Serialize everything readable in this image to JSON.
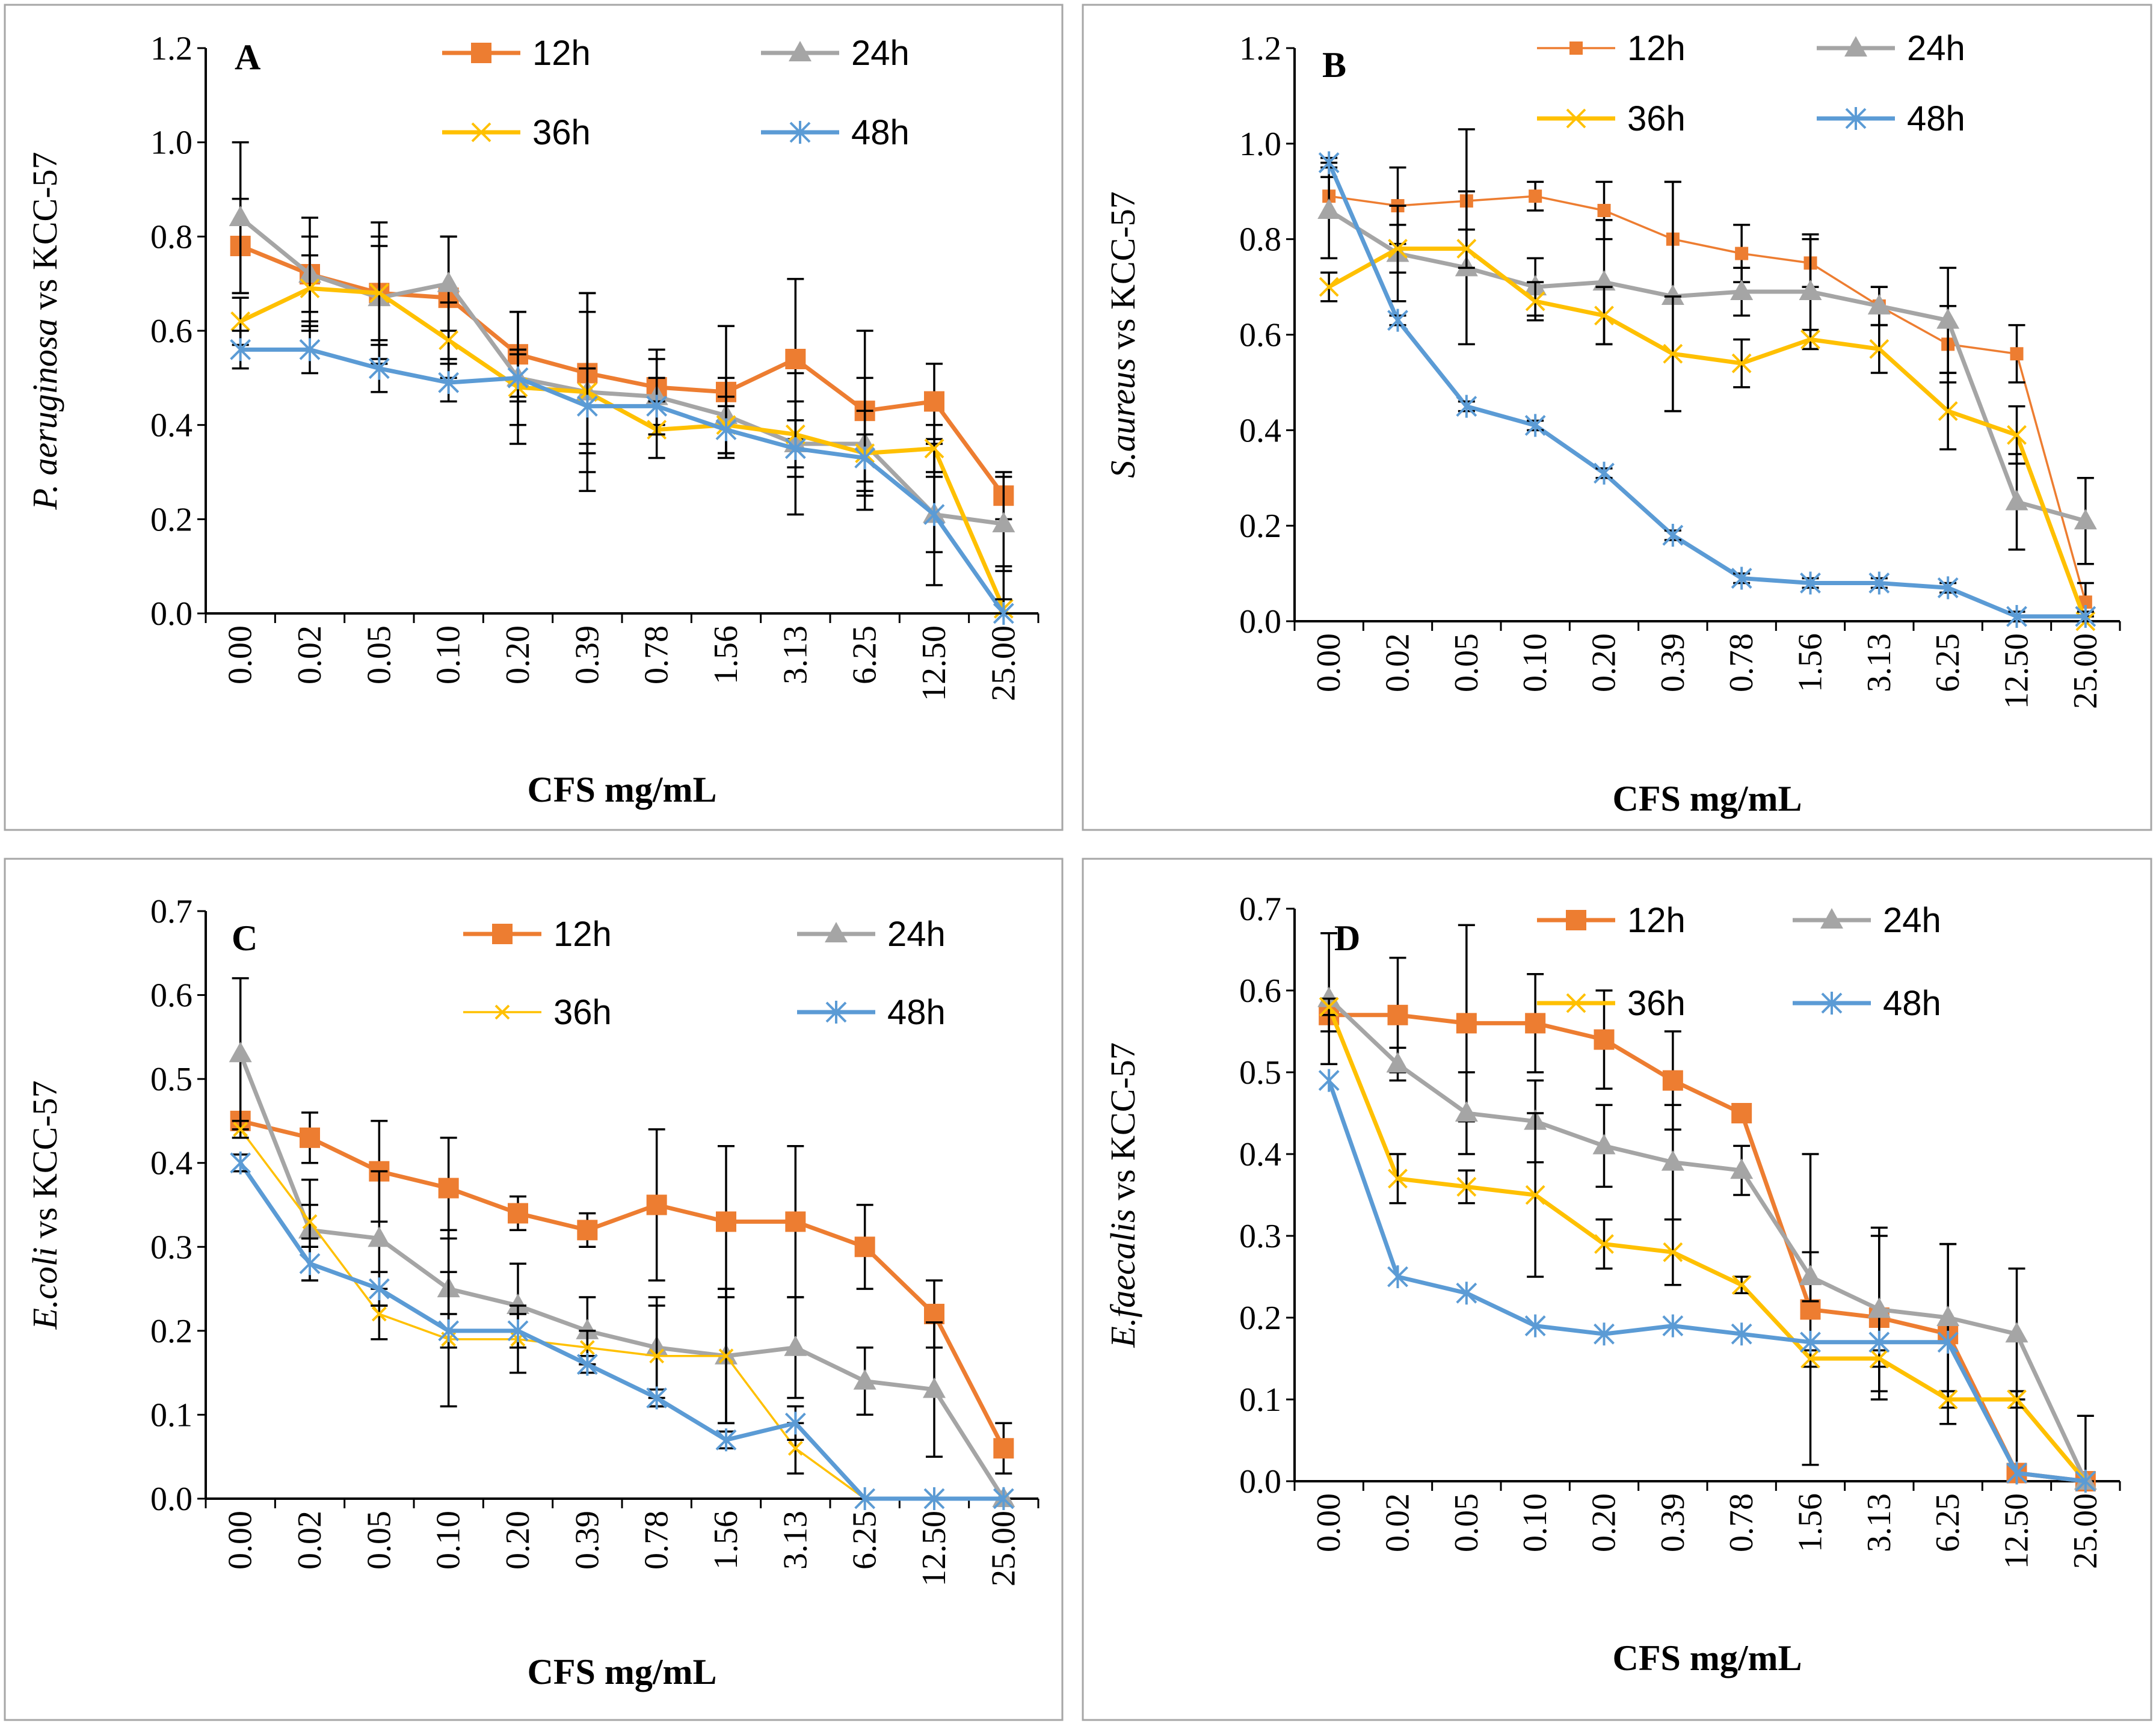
{
  "colors": {
    "12h": "#ed7d31",
    "24h": "#a5a5a5",
    "36h": "#ffc000",
    "48h": "#5b9bd5"
  },
  "chart_data": [
    {
      "type": "line",
      "panel": "A",
      "ylabel_italic": "P. aeruginosa",
      "ylabel_rest": " vs KCC-57",
      "xlabel": "CFS mg/mL",
      "ylim": [
        0,
        1.2
      ],
      "yticks": [
        "0.0",
        "0.2",
        "0.4",
        "0.6",
        "0.8",
        "1.0",
        "1.2"
      ],
      "categories": [
        "0.00",
        "0.02",
        "0.05",
        "0.10",
        "0.20",
        "0.39",
        "0.78",
        "1.56",
        "3.13",
        "6.25",
        "12.50",
        "25.00"
      ],
      "series": [
        {
          "name": "12h",
          "marker": "square",
          "values": [
            0.78,
            0.72,
            0.68,
            0.67,
            0.55,
            0.51,
            0.48,
            0.47,
            0.54,
            0.43,
            0.45,
            0.25
          ],
          "errors": [
            0.1,
            0.12,
            0.15,
            0.13,
            0.09,
            0.17,
            0.08,
            0.14,
            0.17,
            0.17,
            0.08,
            0.05
          ]
        },
        {
          "name": "24h",
          "marker": "triangle",
          "values": [
            0.84,
            0.72,
            0.67,
            0.7,
            0.5,
            0.47,
            0.46,
            0.42,
            0.36,
            0.36,
            0.21,
            0.19
          ],
          "errors": [
            0.16,
            0.08,
            0.13,
            0.1,
            0.14,
            0.21,
            0.08,
            0.08,
            0.15,
            0.14,
            0.15,
            0.1
          ]
        },
        {
          "name": "36h",
          "marker": "x",
          "values": [
            0.62,
            0.69,
            0.68,
            0.58,
            0.48,
            0.47,
            0.39,
            0.4,
            0.38,
            0.34,
            0.35,
            0.01
          ],
          "errors": [
            0.05,
            0.07,
            0.1,
            0.08,
            0.08,
            0.17,
            0.06,
            0.06,
            0.07,
            0.09,
            0.05,
            0.09
          ]
        },
        {
          "name": "48h",
          "marker": "star",
          "values": [
            0.56,
            0.56,
            0.52,
            0.49,
            0.5,
            0.44,
            0.44,
            0.39,
            0.35,
            0.33,
            0.21,
            0.0
          ],
          "errors": [
            0.04,
            0.05,
            0.05,
            0.04,
            0.05,
            0.08,
            0.06,
            0.05,
            0.06,
            0.05,
            0.08,
            0.03
          ]
        }
      ],
      "legend": [
        "12h",
        "24h",
        "36h",
        "48h"
      ]
    },
    {
      "type": "line",
      "panel": "B",
      "ylabel_italic": "S.aureus",
      "ylabel_rest": " vs KCC-57",
      "xlabel": "CFS mg/mL",
      "ylim": [
        0,
        1.2
      ],
      "yticks": [
        "0.0",
        "0.2",
        "0.4",
        "0.6",
        "0.8",
        "1.0",
        "1.2"
      ],
      "categories": [
        "0.00",
        "0.02",
        "0.05",
        "0.10",
        "0.20",
        "0.39",
        "0.78",
        "1.56",
        "3.13",
        "6.25",
        "12.50",
        "25.00"
      ],
      "series": [
        {
          "name": "12h",
          "marker": "square-small",
          "values": [
            0.89,
            0.87,
            0.88,
            0.89,
            0.86,
            0.8,
            0.77,
            0.75,
            0.66,
            0.58,
            0.56,
            0.04
          ],
          "errors": [
            0.04,
            0.08,
            0.15,
            0.03,
            0.06,
            0.12,
            0.06,
            0.05,
            0.04,
            0.08,
            0.06,
            0.04
          ]
        },
        {
          "name": "24h",
          "marker": "triangle",
          "values": [
            0.86,
            0.77,
            0.74,
            0.7,
            0.71,
            0.68,
            0.69,
            0.69,
            0.66,
            0.63,
            0.25,
            0.21
          ],
          "errors": [
            0.1,
            0.1,
            0.16,
            0.06,
            0.13,
            0.24,
            0.05,
            0.12,
            0.04,
            0.11,
            0.1,
            0.09
          ]
        },
        {
          "name": "36h",
          "marker": "x",
          "values": [
            0.7,
            0.78,
            0.78,
            0.67,
            0.64,
            0.56,
            0.54,
            0.59,
            0.57,
            0.44,
            0.39,
            0.0
          ],
          "errors": [
            0.03,
            0.05,
            0.04,
            0.04,
            0.06,
            0.12,
            0.05,
            0.02,
            0.05,
            0.08,
            0.06,
            0.01
          ]
        },
        {
          "name": "48h",
          "marker": "star",
          "values": [
            0.96,
            0.63,
            0.45,
            0.41,
            0.31,
            0.18,
            0.09,
            0.08,
            0.08,
            0.07,
            0.01,
            0.01
          ],
          "errors": [
            0.01,
            0.01,
            0.01,
            0.01,
            0.01,
            0.01,
            0.01,
            0.01,
            0.01,
            0.01,
            0.01,
            0.01
          ]
        }
      ],
      "legend": [
        "12h",
        "24h",
        "36h",
        "48h"
      ]
    },
    {
      "type": "line",
      "panel": "C",
      "ylabel_italic": "E.coli",
      "ylabel_rest": " vs KCC-57",
      "xlabel": "CFS mg/mL",
      "ylim": [
        0,
        0.7
      ],
      "yticks": [
        "0.0",
        "0.1",
        "0.2",
        "0.3",
        "0.4",
        "0.5",
        "0.6",
        "0.7"
      ],
      "categories": [
        "0.00",
        "0.02",
        "0.05",
        "0.10",
        "0.20",
        "0.39",
        "0.78",
        "1.56",
        "3.13",
        "6.25",
        "12.50",
        "25.00"
      ],
      "series": [
        {
          "name": "12h",
          "marker": "square",
          "values": [
            0.45,
            0.43,
            0.39,
            0.37,
            0.34,
            0.32,
            0.35,
            0.33,
            0.33,
            0.3,
            0.22,
            0.06
          ],
          "errors": [
            0.01,
            0.03,
            0.06,
            0.06,
            0.02,
            0.02,
            0.09,
            0.09,
            0.09,
            0.05,
            0.04,
            0.03
          ]
        },
        {
          "name": "24h",
          "marker": "triangle",
          "values": [
            0.53,
            0.32,
            0.31,
            0.25,
            0.23,
            0.2,
            0.18,
            0.17,
            0.18,
            0.14,
            0.13,
            0.0
          ],
          "errors": [
            0.09,
            0.06,
            0.08,
            0.07,
            0.05,
            0.04,
            0.06,
            0.08,
            0.06,
            0.04,
            0.08,
            0.0
          ]
        },
        {
          "name": "36h",
          "marker": "x-small",
          "values": [
            0.44,
            0.33,
            0.22,
            0.19,
            0.19,
            0.18,
            0.17,
            0.17,
            0.06,
            0.0,
            0.0,
            0.0
          ],
          "errors": [
            0.01,
            0.02,
            0.03,
            0.08,
            0.04,
            0.02,
            0.06,
            0.08,
            0.03,
            0.0,
            0.0,
            0.0
          ]
        },
        {
          "name": "48h",
          "marker": "star",
          "values": [
            0.4,
            0.28,
            0.25,
            0.2,
            0.2,
            0.16,
            0.12,
            0.07,
            0.09,
            0.0,
            0.0,
            0.0
          ],
          "errors": [
            0.01,
            0.02,
            0.02,
            0.02,
            0.02,
            0.01,
            0.01,
            0.01,
            0.02,
            0.0,
            0.0,
            0.0
          ]
        }
      ],
      "legend": [
        "12h",
        "24h",
        "36h",
        "48h"
      ]
    },
    {
      "type": "line",
      "panel": "D",
      "ylabel_italic": "E.faecalis",
      "ylabel_rest": " vs KCC-57",
      "xlabel": "CFS mg/mL",
      "ylim": [
        0,
        0.7
      ],
      "yticks": [
        "0.0",
        "0.1",
        "0.2",
        "0.3",
        "0.4",
        "0.5",
        "0.6",
        "0.7"
      ],
      "categories": [
        "0.00",
        "0.02",
        "0.05",
        "0.10",
        "0.20",
        "0.39",
        "0.78",
        "1.56",
        "3.13",
        "6.25",
        "12.50",
        "25.00"
      ],
      "series": [
        {
          "name": "12h",
          "marker": "square",
          "values": [
            0.57,
            0.57,
            0.56,
            0.56,
            0.54,
            0.49,
            0.45,
            0.21,
            0.2,
            0.18,
            0.01,
            0.0
          ],
          "errors": [
            0.02,
            0.07,
            0.12,
            0.06,
            0.06,
            0.06,
            0.01,
            0.19,
            0.1,
            0.11,
            0.1,
            0.0
          ]
        },
        {
          "name": "24h",
          "marker": "triangle",
          "values": [
            0.59,
            0.51,
            0.45,
            0.44,
            0.41,
            0.39,
            0.38,
            0.25,
            0.21,
            0.2,
            0.18,
            0.0
          ],
          "errors": [
            0.08,
            0.02,
            0.05,
            0.05,
            0.05,
            0.07,
            0.03,
            0.03,
            0.1,
            0.09,
            0.08,
            0.08
          ]
        },
        {
          "name": "36h",
          "marker": "x",
          "values": [
            0.58,
            0.37,
            0.36,
            0.35,
            0.29,
            0.28,
            0.24,
            0.15,
            0.15,
            0.1,
            0.1,
            0.0
          ],
          "errors": [
            0.01,
            0.03,
            0.02,
            0.1,
            0.03,
            0.04,
            0.01,
            0.01,
            0.01,
            0.01,
            0.01,
            0.0
          ]
        },
        {
          "name": "48h",
          "marker": "star",
          "values": [
            0.49,
            0.25,
            0.23,
            0.19,
            0.18,
            0.19,
            0.18,
            0.17,
            0.17,
            0.17,
            0.01,
            0.0
          ],
          "errors": [
            0.0,
            0.0,
            0.0,
            0.0,
            0.0,
            0.0,
            0.0,
            0.0,
            0.0,
            0.0,
            0.0,
            0.0
          ]
        }
      ],
      "legend": [
        "12h",
        "24h",
        "36h",
        "48h"
      ]
    }
  ]
}
